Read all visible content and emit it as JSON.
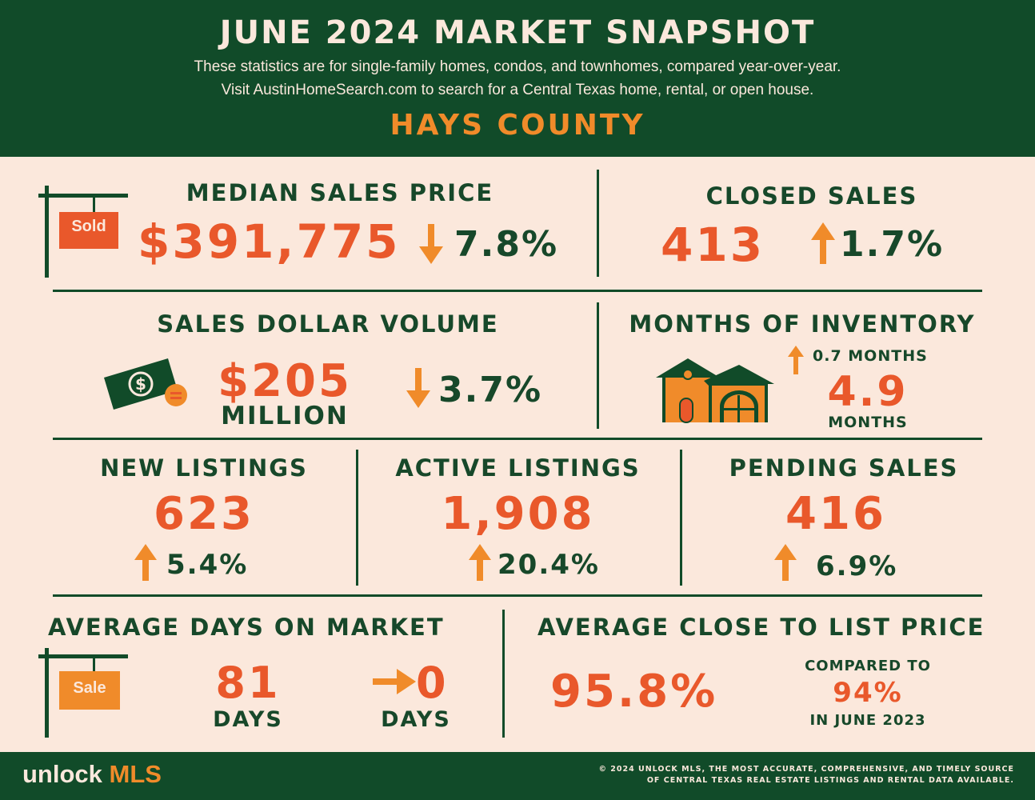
{
  "header": {
    "title": "JUNE 2024 MARKET SNAPSHOT",
    "subtitle_1": "These statistics are for single-family homes, condos, and townhomes, compared year-over-year.",
    "subtitle_2": "Visit AustinHomeSearch.com to search for a Central Texas home, rental, or open house.",
    "county": "HAYS COUNTY"
  },
  "median_sales_price": {
    "label": "MEDIAN SALES PRICE",
    "value": "$391,775",
    "change": "7.8%",
    "direction": "down",
    "sign_text": "Sold"
  },
  "closed_sales": {
    "label": "CLOSED SALES",
    "value": "413",
    "change": "1.7%",
    "direction": "up"
  },
  "sales_dollar_volume": {
    "label": "SALES DOLLAR VOLUME",
    "value": "$205",
    "unit": "MILLION",
    "change": "3.7%",
    "direction": "down"
  },
  "months_of_inventory": {
    "label": "MONTHS OF INVENTORY",
    "change": "0.7 MONTHS",
    "direction": "up",
    "value": "4.9",
    "unit": "MONTHS"
  },
  "new_listings": {
    "label": "NEW LISTINGS",
    "value": "623",
    "change": "5.4%",
    "direction": "up"
  },
  "active_listings": {
    "label": "ACTIVE LISTINGS",
    "value": "1,908",
    "change": "20.4%",
    "direction": "up"
  },
  "pending_sales": {
    "label": "PENDING SALES",
    "value": "416",
    "change": "6.9%",
    "direction": "up"
  },
  "average_days_on_market": {
    "label": "AVERAGE DAYS ON MARKET",
    "value": "81",
    "unit": "DAYS",
    "change": "0",
    "change_unit": "DAYS",
    "direction": "flat",
    "sign_text": "Sale"
  },
  "average_close_to_list": {
    "label": "AVERAGE CLOSE TO LIST PRICE",
    "value": "95.8%",
    "compare_label": "COMPARED TO",
    "compare_value": "94%",
    "compare_period": "IN JUNE 2023"
  },
  "footer": {
    "logo_prefix": "unlock",
    "logo_suffix": "MLS",
    "copyright_1": "© 2024 UNLOCK MLS, THE MOST ACCURATE, COMPREHENSIVE, AND TIMELY SOURCE",
    "copyright_2": "OF CENTRAL TEXAS REAL ESTATE LISTINGS AND RENTAL DATA AVAILABLE."
  },
  "colors": {
    "green": "#114b29",
    "orange": "#f08b2a",
    "red_orange": "#e9582b",
    "cream": "#fbe8dc"
  }
}
